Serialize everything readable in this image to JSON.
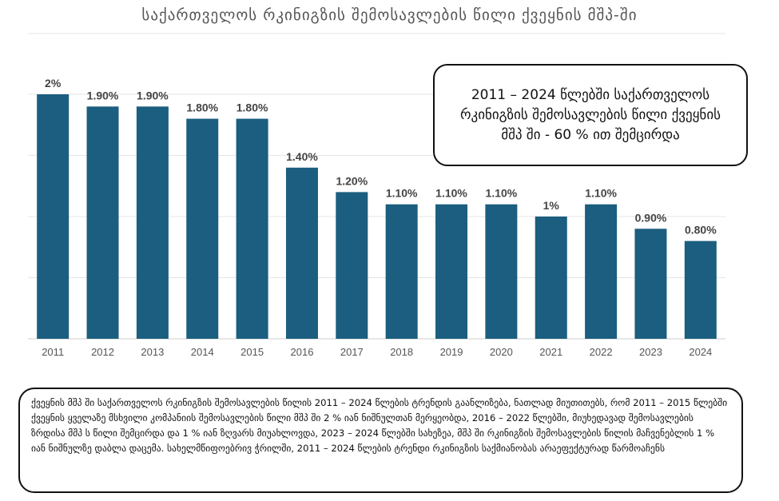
{
  "chart_data": {
    "type": "bar",
    "title": "საქართველოს რკინიგზის შემოსავლების წილი ქვეყნის მშპ-ში",
    "categories": [
      "2011",
      "2012",
      "2013",
      "2014",
      "2015",
      "2016",
      "2017",
      "2018",
      "2019",
      "2020",
      "2021",
      "2022",
      "2023",
      "2024"
    ],
    "values": [
      2.0,
      1.9,
      1.9,
      1.8,
      1.8,
      1.4,
      1.2,
      1.1,
      1.1,
      1.1,
      1.0,
      1.1,
      0.9,
      0.8
    ],
    "data_labels": [
      "2%",
      "1.90%",
      "1.90%",
      "1.80%",
      "1.80%",
      "1.40%",
      "1.20%",
      "1.10%",
      "1.10%",
      "1.10%",
      "1%",
      "1.10%",
      "0.90%",
      "0.80%"
    ],
    "ylim": [
      0,
      2.0
    ],
    "grid": true,
    "bar_color": "#1b5e7f",
    "xlabel": "",
    "ylabel": ""
  },
  "callout": {
    "text": "2011 – 2024 წლებში საქართველოს რკინიგზის შემოსავლების წილი ქვეყნის მშპ ში - 60 % ით შემცირდა"
  },
  "summary": {
    "text": "ქვეყნის მშპ ში საქართველოს რკინიგზის შემოსავლების წილის 2011 – 2024 წლების ტრენდის გაანლიზება, ნათლად მიუთითებს, რომ 2011 – 2015 წლებში ქვეყნის ყველაზე მსხვილი კომპანიის შემოსავლების წილი მშპ ში 2 % იან ნიშნულთან მერყეობდა, 2016 – 2022 წლებში, მიუხედავად შემოსავლების ზრდისა მშპ ს წილი შემცირდა და 1 % იან ზღვარს მიუახლოვდა, 2023 – 2024 წლებში სახეზეა, მშპ ში რკინიგზის შემოსავლების წილის მაჩვენებლის 1 % იან ნიშნულზე დაბლა დაცემა. სახელმწიფოებრივ ჭრილში, 2011 – 2024 წლების ტრენდი რკინიგზის საქმიანობას არაეფექტურად წარმოაჩენს"
  }
}
